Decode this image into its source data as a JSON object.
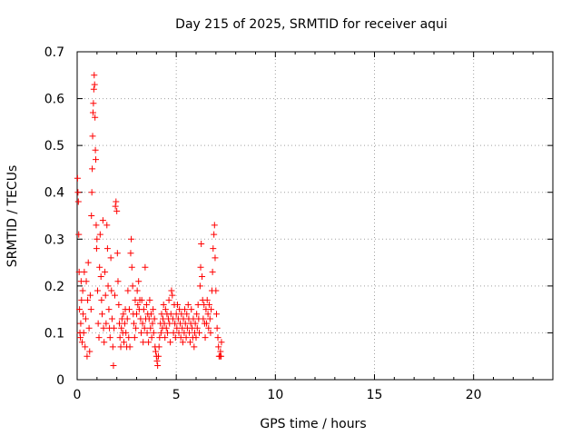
{
  "chart_data": {
    "type": "scatter",
    "title": "Day 215 of 2025, SRMTID for receiver aqui",
    "xlabel": "GPS time / hours",
    "ylabel": "SRMTID / TECUs",
    "xlim": [
      0,
      24
    ],
    "ylim": [
      0,
      0.7
    ],
    "xticks": [
      "0",
      "5",
      "10",
      "15",
      "20"
    ],
    "yticks": [
      "0",
      "0.1",
      "0.2",
      "0.3",
      "0.4",
      "0.5",
      "0.6",
      "0.7"
    ],
    "grid": true,
    "marker": "+",
    "point_color": "#ff0000",
    "series": [
      {
        "points": [
          [
            0.02,
            0.43
          ],
          [
            0.04,
            0.4
          ],
          [
            0.06,
            0.38
          ],
          [
            0.08,
            0.31
          ],
          [
            0.1,
            0.23
          ],
          [
            0.12,
            0.15
          ],
          [
            0.14,
            0.1
          ],
          [
            0.16,
            0.09
          ],
          [
            0.18,
            0.12
          ],
          [
            0.2,
            0.21
          ],
          [
            0.22,
            0.17
          ],
          [
            0.25,
            0.08
          ],
          [
            0.28,
            0.19
          ],
          [
            0.3,
            0.14
          ],
          [
            0.33,
            0.1
          ],
          [
            0.36,
            0.23
          ],
          [
            0.4,
            0.07
          ],
          [
            0.43,
            0.13
          ],
          [
            0.46,
            0.21
          ],
          [
            0.5,
            0.05
          ],
          [
            0.53,
            0.17
          ],
          [
            0.56,
            0.25
          ],
          [
            0.6,
            0.11
          ],
          [
            0.63,
            0.06
          ],
          [
            0.66,
            0.18
          ],
          [
            0.7,
            0.15
          ],
          [
            0.72,
            0.35
          ],
          [
            0.74,
            0.4
          ],
          [
            0.76,
            0.45
          ],
          [
            0.78,
            0.52
          ],
          [
            0.8,
            0.57
          ],
          [
            0.82,
            0.59
          ],
          [
            0.84,
            0.62
          ],
          [
            0.86,
            0.65
          ],
          [
            0.88,
            0.63
          ],
          [
            0.9,
            0.56
          ],
          [
            0.92,
            0.49
          ],
          [
            0.94,
            0.47
          ],
          [
            0.96,
            0.33
          ],
          [
            0.98,
            0.28
          ],
          [
            1.0,
            0.3
          ],
          [
            1.03,
            0.19
          ],
          [
            1.06,
            0.12
          ],
          [
            1.1,
            0.09
          ],
          [
            1.13,
            0.24
          ],
          [
            1.16,
            0.31
          ],
          [
            1.2,
            0.22
          ],
          [
            1.23,
            0.17
          ],
          [
            1.26,
            0.14
          ],
          [
            1.3,
            0.34
          ],
          [
            1.33,
            0.11
          ],
          [
            1.36,
            0.08
          ],
          [
            1.4,
            0.23
          ],
          [
            1.43,
            0.18
          ],
          [
            1.46,
            0.12
          ],
          [
            1.5,
            0.33
          ],
          [
            1.53,
            0.28
          ],
          [
            1.56,
            0.2
          ],
          [
            1.6,
            0.15
          ],
          [
            1.63,
            0.11
          ],
          [
            1.66,
            0.09
          ],
          [
            1.7,
            0.26
          ],
          [
            1.73,
            0.19
          ],
          [
            1.76,
            0.13
          ],
          [
            1.8,
            0.07
          ],
          [
            1.83,
            0.03
          ],
          [
            1.86,
            0.11
          ],
          [
            1.9,
            0.18
          ],
          [
            1.93,
            0.37
          ],
          [
            1.96,
            0.38
          ],
          [
            2.0,
            0.36
          ],
          [
            2.03,
            0.27
          ],
          [
            2.06,
            0.21
          ],
          [
            2.1,
            0.16
          ],
          [
            2.13,
            0.12
          ],
          [
            2.16,
            0.09
          ],
          [
            2.2,
            0.07
          ],
          [
            2.23,
            0.11
          ],
          [
            2.26,
            0.13
          ],
          [
            2.3,
            0.1
          ],
          [
            2.33,
            0.14
          ],
          [
            2.36,
            0.08
          ],
          [
            2.4,
            0.12
          ],
          [
            2.43,
            0.15
          ],
          [
            2.46,
            0.1
          ],
          [
            2.5,
            0.07
          ],
          [
            2.53,
            0.13
          ],
          [
            2.56,
            0.19
          ],
          [
            2.6,
            0.09
          ],
          [
            2.63,
            0.15
          ],
          [
            2.66,
            0.07
          ],
          [
            2.7,
            0.27
          ],
          [
            2.73,
            0.3
          ],
          [
            2.76,
            0.24
          ],
          [
            2.8,
            0.2
          ],
          [
            2.83,
            0.14
          ],
          [
            2.86,
            0.12
          ],
          [
            2.9,
            0.09
          ],
          [
            2.93,
            0.17
          ],
          [
            2.96,
            0.11
          ],
          [
            3.0,
            0.14
          ],
          [
            3.03,
            0.19
          ],
          [
            3.06,
            0.16
          ],
          [
            3.1,
            0.21
          ],
          [
            3.13,
            0.15
          ],
          [
            3.16,
            0.17
          ],
          [
            3.2,
            0.13
          ],
          [
            3.23,
            0.1
          ],
          [
            3.26,
            0.17
          ],
          [
            3.3,
            0.12
          ],
          [
            3.33,
            0.08
          ],
          [
            3.36,
            0.15
          ],
          [
            3.4,
            0.11
          ],
          [
            3.43,
            0.24
          ],
          [
            3.46,
            0.13
          ],
          [
            3.5,
            0.16
          ],
          [
            3.53,
            0.1
          ],
          [
            3.56,
            0.14
          ],
          [
            3.6,
            0.08
          ],
          [
            3.63,
            0.13
          ],
          [
            3.66,
            0.17
          ],
          [
            3.7,
            0.11
          ],
          [
            3.73,
            0.14
          ],
          [
            3.76,
            0.09
          ],
          [
            3.8,
            0.12
          ],
          [
            3.83,
            0.15
          ],
          [
            3.86,
            0.1
          ],
          [
            3.9,
            0.13
          ],
          [
            3.93,
            0.07
          ],
          [
            3.96,
            0.06
          ],
          [
            4.0,
            0.05
          ],
          [
            4.03,
            0.04
          ],
          [
            4.06,
            0.03
          ],
          [
            4.1,
            0.05
          ],
          [
            4.13,
            0.07
          ],
          [
            4.16,
            0.09
          ],
          [
            4.2,
            0.12
          ],
          [
            4.23,
            0.1
          ],
          [
            4.26,
            0.14
          ],
          [
            4.3,
            0.11
          ],
          [
            4.33,
            0.13
          ],
          [
            4.36,
            0.16
          ],
          [
            4.4,
            0.12
          ],
          [
            4.43,
            0.09
          ],
          [
            4.46,
            0.15
          ],
          [
            4.5,
            0.11
          ],
          [
            4.53,
            0.14
          ],
          [
            4.56,
            0.1
          ],
          [
            4.6,
            0.13
          ],
          [
            4.63,
            0.17
          ],
          [
            4.66,
            0.12
          ],
          [
            4.7,
            0.08
          ],
          [
            4.73,
            0.14
          ],
          [
            4.76,
            0.19
          ],
          [
            4.8,
            0.18
          ],
          [
            4.83,
            0.13
          ],
          [
            4.86,
            0.1
          ],
          [
            4.9,
            0.16
          ],
          [
            4.93,
            0.12
          ],
          [
            4.96,
            0.09
          ],
          [
            5.0,
            0.14
          ],
          [
            5.03,
            0.11
          ],
          [
            5.06,
            0.16
          ],
          [
            5.1,
            0.13
          ],
          [
            5.13,
            0.1
          ],
          [
            5.16,
            0.15
          ],
          [
            5.2,
            0.12
          ],
          [
            5.23,
            0.09
          ],
          [
            5.26,
            0.14
          ],
          [
            5.3,
            0.11
          ],
          [
            5.33,
            0.08
          ],
          [
            5.36,
            0.13
          ],
          [
            5.4,
            0.1
          ],
          [
            5.43,
            0.15
          ],
          [
            5.46,
            0.12
          ],
          [
            5.5,
            0.09
          ],
          [
            5.53,
            0.14
          ],
          [
            5.56,
            0.11
          ],
          [
            5.6,
            0.16
          ],
          [
            5.63,
            0.13
          ],
          [
            5.66,
            0.1
          ],
          [
            5.7,
            0.08
          ],
          [
            5.73,
            0.12
          ],
          [
            5.76,
            0.15
          ],
          [
            5.8,
            0.11
          ],
          [
            5.83,
            0.09
          ],
          [
            5.86,
            0.13
          ],
          [
            5.9,
            0.07
          ],
          [
            5.93,
            0.1
          ],
          [
            5.96,
            0.12
          ],
          [
            6.0,
            0.09
          ],
          [
            6.03,
            0.14
          ],
          [
            6.06,
            0.11
          ],
          [
            6.1,
            0.16
          ],
          [
            6.13,
            0.13
          ],
          [
            6.16,
            0.1
          ],
          [
            6.2,
            0.2
          ],
          [
            6.23,
            0.24
          ],
          [
            6.26,
            0.29
          ],
          [
            6.3,
            0.22
          ],
          [
            6.33,
            0.17
          ],
          [
            6.36,
            0.13
          ],
          [
            6.4,
            0.16
          ],
          [
            6.43,
            0.12
          ],
          [
            6.46,
            0.09
          ],
          [
            6.5,
            0.15
          ],
          [
            6.53,
            0.12
          ],
          [
            6.56,
            0.17
          ],
          [
            6.6,
            0.14
          ],
          [
            6.63,
            0.11
          ],
          [
            6.66,
            0.16
          ],
          [
            6.7,
            0.13
          ],
          [
            6.73,
            0.1
          ],
          [
            6.76,
            0.15
          ],
          [
            6.8,
            0.19
          ],
          [
            6.83,
            0.23
          ],
          [
            6.86,
            0.28
          ],
          [
            6.9,
            0.31
          ],
          [
            6.93,
            0.33
          ],
          [
            6.96,
            0.26
          ],
          [
            7.0,
            0.19
          ],
          [
            7.03,
            0.14
          ],
          [
            7.06,
            0.11
          ],
          [
            7.1,
            0.09
          ],
          [
            7.13,
            0.07
          ],
          [
            7.16,
            0.05
          ],
          [
            7.2,
            0.05
          ],
          [
            7.23,
            0.06
          ],
          [
            7.26,
            0.05
          ],
          [
            7.28,
            0.08
          ]
        ]
      }
    ]
  }
}
